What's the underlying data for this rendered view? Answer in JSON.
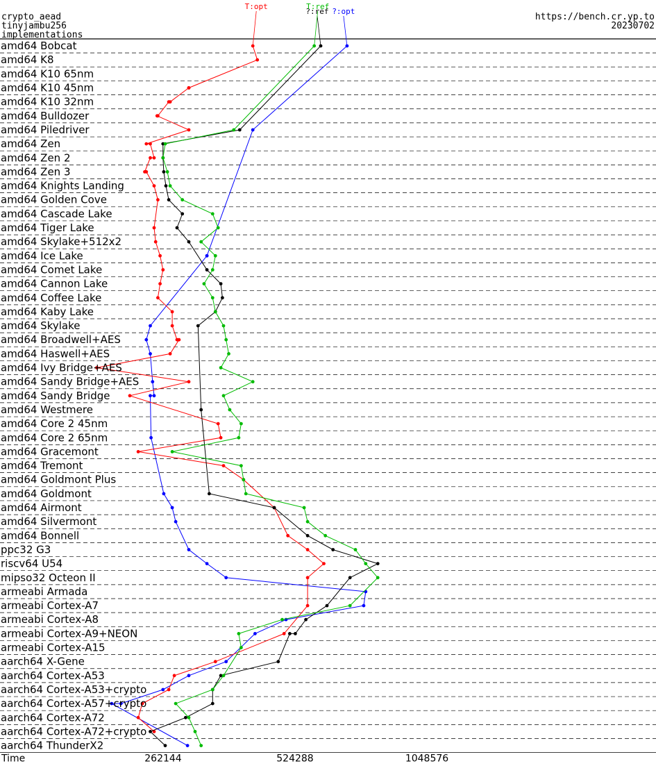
{
  "header": {
    "left_lines": [
      "crypto_aead",
      "tinyjambu256",
      "implementations"
    ],
    "right_url": "https://bench.cr.yp.to",
    "right_date": "20230702"
  },
  "chart_data": {
    "type": "line",
    "xlabel": "Time",
    "x_scale": "log2",
    "x_ticks": [
      262144,
      524288,
      1048576
    ],
    "x_tick_labels": [
      "262144",
      "524288",
      "1048576"
    ],
    "series": [
      {
        "name": "?:opt",
        "color": "#0000ff"
      },
      {
        "name": "T:opt",
        "color": "#ff0000"
      },
      {
        "name": "?:ref",
        "color": "#000000"
      },
      {
        "name": "T:ref",
        "color": "#00bb00"
      }
    ],
    "categories": [
      "amd64 Bobcat",
      "amd64 K8",
      "amd64 K10 65nm",
      "amd64 K10 45nm",
      "amd64 K10 32nm",
      "amd64 Bulldozer",
      "amd64 Piledriver",
      "amd64 Zen",
      "amd64 Zen 2",
      "amd64 Zen 3",
      "amd64 Knights Landing",
      "amd64 Golden Cove",
      "amd64 Cascade Lake",
      "amd64 Tiger Lake",
      "amd64 Skylake+512x2",
      "amd64 Ice Lake",
      "amd64 Comet Lake",
      "amd64 Cannon Lake",
      "amd64 Coffee Lake",
      "amd64 Kaby Lake",
      "amd64 Skylake",
      "amd64 Broadwell+AES",
      "amd64 Haswell+AES",
      "amd64 Ivy Bridge+AES",
      "amd64 Sandy Bridge+AES",
      "amd64 Sandy Bridge",
      "amd64 Westmere",
      "amd64 Core 2 45nm",
      "amd64 Core 2 65nm",
      "amd64 Gracemont",
      "amd64 Tremont",
      "amd64 Goldmont Plus",
      "amd64 Goldmont",
      "amd64 Airmont",
      "amd64 Silvermont",
      "amd64 Bonnell",
      "ppc32 G3",
      "riscv64 U54",
      "mipso32 Octeon II",
      "armeabi Armada",
      "armeabi Cortex-A7",
      "armeabi Cortex-A8",
      "armeabi Cortex-A9+NEON",
      "armeabi Cortex-A15",
      "aarch64 X-Gene",
      "aarch64 Cortex-A53",
      "aarch64 Cortex-A53+crypto",
      "aarch64 Cortex-A57+crypto",
      "aarch64 Cortex-A72",
      "aarch64 Cortex-A72+crypto",
      "aarch64 ThunderX2"
    ],
    "values": {
      "?:opt": [
        [
          0,
          689000
        ],
        [
          6,
          420000
        ],
        [
          15,
          330000
        ],
        [
          15,
          330000
        ],
        [
          20,
          245000
        ],
        [
          21,
          240000
        ],
        [
          22,
          245000
        ],
        [
          24,
          248000
        ],
        [
          25,
          250000
        ],
        [
          25,
          245000
        ],
        [
          28,
          246000
        ],
        [
          32,
          263000
        ],
        [
          33,
          275000
        ],
        [
          34,
          280000
        ],
        [
          36,
          300000
        ],
        [
          37,
          330000
        ],
        [
          38,
          365000
        ],
        [
          39,
          760000
        ],
        [
          40,
          752000
        ],
        [
          41,
          500000
        ],
        [
          42,
          425000
        ],
        [
          44,
          365000
        ],
        [
          45,
          300000
        ],
        [
          46,
          262000
        ],
        [
          47,
          210000
        ],
        [
          47,
          200000
        ],
        [
          50,
          298000
        ]
      ],
      "T:opt": [
        [
          0,
          420000
        ],
        [
          1,
          430000
        ],
        [
          3,
          300000
        ],
        [
          3,
          300000
        ],
        [
          4,
          272000
        ],
        [
          4,
          270000
        ],
        [
          5,
          255000
        ],
        [
          5,
          254000
        ],
        [
          6,
          300000
        ],
        [
          7,
          240000
        ],
        [
          7,
          245000
        ],
        [
          8,
          250000
        ],
        [
          8,
          245000
        ],
        [
          9,
          238000
        ],
        [
          9,
          240000
        ],
        [
          10,
          250000
        ],
        [
          11,
          255000
        ],
        [
          13,
          250000
        ],
        [
          14,
          252000
        ],
        [
          15,
          258000
        ],
        [
          16,
          262000
        ],
        [
          17,
          258000
        ],
        [
          18,
          255000
        ],
        [
          19,
          275000
        ],
        [
          20,
          275000
        ],
        [
          21,
          282000
        ],
        [
          21,
          285000
        ],
        [
          22,
          272000
        ],
        [
          23,
          185000
        ],
        [
          24,
          300000
        ],
        [
          25,
          220000
        ],
        [
          27,
          350000
        ],
        [
          28,
          355000
        ],
        [
          29,
          230000
        ],
        [
          30,
          360000
        ],
        [
          31,
          400000
        ],
        [
          33,
          470000
        ],
        [
          35,
          505000
        ],
        [
          36,
          560000
        ],
        [
          37,
          610000
        ],
        [
          38,
          560000
        ],
        [
          40,
          560000
        ],
        [
          42,
          495000
        ],
        [
          44,
          345000
        ],
        [
          45,
          278000
        ],
        [
          46,
          270000
        ],
        [
          47,
          235000
        ],
        [
          48,
          230000
        ],
        [
          49,
          250000
        ]
      ],
      "?:ref": [
        [
          0,
          600000
        ],
        [
          6,
          392000
        ],
        [
          7,
          262000
        ],
        [
          8,
          262000
        ],
        [
          9,
          263000
        ],
        [
          10,
          266000
        ],
        [
          11,
          270000
        ],
        [
          12,
          290000
        ],
        [
          13,
          282000
        ],
        [
          14,
          300000
        ],
        [
          16,
          330000
        ],
        [
          17,
          355000
        ],
        [
          18,
          358000
        ],
        [
          19,
          345000
        ],
        [
          20,
          315000
        ],
        [
          26,
          320000
        ],
        [
          32,
          334000
        ],
        [
          33,
          470000
        ],
        [
          35,
          560000
        ],
        [
          36,
          640000
        ],
        [
          37,
          810000
        ],
        [
          38,
          700000
        ],
        [
          40,
          620000
        ],
        [
          41,
          555000
        ],
        [
          42,
          525000
        ],
        [
          42,
          510000
        ],
        [
          44,
          480000
        ],
        [
          45,
          355000
        ],
        [
          46,
          340000
        ],
        [
          47,
          340000
        ],
        [
          48,
          295000
        ],
        [
          49,
          245000
        ],
        [
          50,
          265000
        ]
      ],
      "T:ref": [
        [
          0,
          580000
        ],
        [
          6,
          380000
        ],
        [
          7,
          265000
        ],
        [
          8,
          262000
        ],
        [
          9,
          268000
        ],
        [
          10,
          272000
        ],
        [
          11,
          290000
        ],
        [
          12,
          340000
        ],
        [
          13,
          350000
        ],
        [
          14,
          320000
        ],
        [
          15,
          345000
        ],
        [
          16,
          340000
        ],
        [
          17,
          325000
        ],
        [
          18,
          340000
        ],
        [
          19,
          345000
        ],
        [
          20,
          360000
        ],
        [
          21,
          365000
        ],
        [
          22,
          370000
        ],
        [
          23,
          355000
        ],
        [
          24,
          420000
        ],
        [
          25,
          360000
        ],
        [
          26,
          372000
        ],
        [
          27,
          395000
        ],
        [
          28,
          390000
        ],
        [
          29,
          275000
        ],
        [
          30,
          395000
        ],
        [
          31,
          400000
        ],
        [
          32,
          405000
        ],
        [
          33,
          550000
        ],
        [
          34,
          560000
        ],
        [
          35,
          615000
        ],
        [
          36,
          720000
        ],
        [
          37,
          760000
        ],
        [
          38,
          810000
        ],
        [
          40,
          700000
        ],
        [
          41,
          490000
        ],
        [
          42,
          390000
        ],
        [
          43,
          395000
        ],
        [
          45,
          360000
        ],
        [
          46,
          340000
        ],
        [
          47,
          280000
        ],
        [
          48,
          300000
        ],
        [
          49,
          310000
        ],
        [
          50,
          320000
        ]
      ]
    }
  }
}
